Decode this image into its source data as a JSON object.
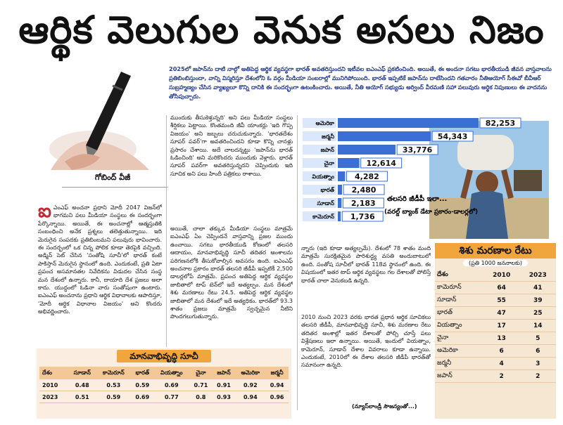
{
  "headline": "ఆర్థిక వెలుగుల వెనుక అసలు నిజం",
  "byline": "గోబింద్ వీజీ",
  "intro": "2025లో జపాన్‌ను దాటి నాల్గో అతిపెద్ద ఆర్థిక వ్యవస్థగా భారత్ అవతరిస్తుందని ఇటీవల ఐఎంఎఫ్ ప్రకటించింది. అయితే, ఈ అందనా సగటు భారతీయుడి జీవన వాస్తవాలను ప్రతిబింబిస్తుందా, వాన్ని విస్మరిస్తూ దేశంలోని ఓ వర్గం మీడియా సంబరాల్లో మునిగిపోయింది. భారత్ ఇప్పటికే జపాన్‌ను దాటేసిందని గతవారం నీతిఆయోగ్ సీఈవో బీవీఆర్ సుబ్రహ్మణ్యం చేసిన వ్యాఖ్యలూ కొన్ని దానికి ఈ సందర్భంగా ఉటంకించారు. అయితే, నీతి ఆయోగ్ సభ్యుడు అర్వింద్ వీరమణి సహా పలువురు ఆర్థిక నిపుణులు ఈ వాదనను తోసిపుచ్చారు.",
  "col1": {
    "dropcap": "ఐ",
    "text": "ఎంఎఫ్ అంచనా ప్రధాని మోదీ 2047 విజన్‌లో భాగమని పలు మీడియా సంస్థలు ఈ సందర్భంగా పేర్కొన్నాయి. అయితే, ఈ అంచనాల్లో ఆత్మస్తుతికి సంబంధించి అనేక ప్రశ్నలు తలెత్తుతున్నాయి. ఇది మెరుగైన సంపదకు ప్రతిబింబమని పలువురు భావించారు. ఈ సందర్భంలో ఒక చిన్న పోలిక కూడా తెరపైకి వచ్చింది. అడ్మిన్ సెట్ చేసిన 'సంతోషి సూచీ'లో భారత్ కంటే పాకిస్తాన్ మెరుగైన స్థానంలో ఉంది. ఎందుకంటే, ప్రతి ఏటా ప్రపంచ అసమానతల నివేదికను విడుదల చేసిన సంస్థ మన దేశంలో ఉన్నారు. కానీ, దాయాది దేశ ప్రజలు అలా కాదు. యుద్ధంలో ఓడినా వారు సంతోషంగా ఉంటారు. ఐఎంఎఫ్ అంచనాను ప్రధాని ఆర్థిక విధానాలకు ఆపాదిస్తూ, 'మోదీ ఆర్థిక విధానాల విజయం' అని కొందరు అభివర్ణించారు."
  },
  "col2": {
    "text": "ముందుకు తీసుకెళ్తున్నది' అని పలు మీడియా సంస్థలు శీర్షికలు పెట్టాయి. కొంతమంది జీవీ యాంకర్లు 'ఇది గొప్ప విజయం' అని జబ్బలు చరుచుకున్నారు. 'భారతదేశం సూపర్ పవర్‌'గా అవతరించిందని కూడా కొన్ని చానళ్లు ప్రసారం చేశాయి. అదే చాలదన్నట్టు 'జపాన్‌ను భారత్ ఓడించింది' అని మరికొందరు ముందుకు వెళ్లారు. భారత్ సూపర్ పవర్‌గా అవతరిస్తున్నదని చెప్పిందుకు ఇది సూచిక అని పలు హిందీ పత్రికలు రాశాయి.",
    "text2": "అయితే, చాలా తక్కువ మీడియా సంస్థలు మాత్రమే ఐఎంఎఫ్ ఏం చెప్పిందనే వాస్తవాన్ని ప్రజల ముందు ఉంచాయి. సగటు భారతీయుడి కోణంలో తలసరి ఆదాయం, మానవాభివృద్ధి సూచీ తదితర అంశాలను పరిగణనలోకి తీసుకోవాల్సిన అవసరం ఉంది. ఐఎంఎఫ్ అంచనాల ప్రకారం భారత్ తలసరి జీడీపీ ఇప్పటికీ 2,500 డాలర్లలోపే మాత్రమే. ప్రపంచ అతిపెద్ద ఆర్థిక వ్యవస్థల జాబితాలో టాప్ టెన్‌లో ఇదే అత్యల్పం. మన దేశంలో శిశు మరణాలు రేటు 24.5. అతిపెద్ద ఆర్థిక వ్యవస్థల జాబితాలో మన దేశంలో ఇదే అత్యధికం. భారత్‌లో 93.3 శాతం ప్రజలు మాత్రమే స్వచ్ఛమైన నీటిని పొందగలుగుతున్నారు."
  },
  "col3": {
    "text": "న్నారు (ఇది కూడా అత్యల్పమే). దేశంలో 78 శాతం మంది మాత్రమే సురక్షితమైన పారిశుద్ధ్య వసతి అందుబాటులో ఉంది. సంతోష సూచీలో భారత్ 118వ స్థానంలో ఉంది. ఈ విషయంలో ఇతర టాప్ ఆర్థిక వ్యవస్థలు గల దేశాలతో పోలిస్తే భారత్ చాలా వెనుకబడి ఉన్నది.",
    "text2": "2010 నుంచి 2023 వరకు భారత ప్రధాన ఆర్థిక సూచికలు తలసరి జీడీపీ, మానవాభివృద్ధి సూచీ, శిశు మరణాల రేటు తదితర అంశాల్లో ఇతర దేశాలతో పోల్చి చూస్తే పలు విశ్లేషణలు ఇలా ఉన్నాయి. అయితే, ఇందులో వియత్నాం, కామెరూన్, సూడాన్ దేశాల వివరాలు కూడా ఉన్నాయి. ఎందుకంటే, 2010లో ఈ దేశాల తలసరి జీడీపీ భారత్‌తో సమానంగా ఉన్నది."
  },
  "credit": "(న్యూస్‌లాండ్రీ సౌజన్యంతో...)",
  "chart_data": {
    "type": "bar",
    "orientation": "horizontal",
    "title": "తలసరి జీడీపీ ఇలా...",
    "subtitle": "(వరల్డ్ బ్యాంక్ డేటా ప్రకారం-డాలర్లలో)",
    "categories": [
      "అమెరికా",
      "జర్మనీ",
      "జపాన్",
      "చైనా",
      "వియత్నాం",
      "భారత్",
      "సూడాన్",
      "కామెరూన్"
    ],
    "values": [
      82253,
      54343,
      33776,
      12614,
      4282,
      2480,
      2183,
      1736
    ],
    "value_labels": [
      "82,253",
      "54,343",
      "33,776",
      "12,614",
      "4,282",
      "2,480",
      "2,183",
      "1,736"
    ],
    "xlim": [
      0,
      82253
    ],
    "colors": {
      "bar": "#3b6fd4",
      "bar_top": "#1f4fb8",
      "label_bg": "#dbe7fb"
    }
  },
  "imr": {
    "title": "శిశు మరణాల రేటు",
    "subtitle": "(ప్రతి 1000 జననాలకు)",
    "headers": [
      "దేశం",
      "2010",
      "2023"
    ],
    "rows": [
      [
        "కామెరూన్",
        "64",
        "41"
      ],
      [
        "సూడాన్",
        "55",
        "39"
      ],
      [
        "భారత్",
        "47",
        "25"
      ],
      [
        "వియత్నాం",
        "17",
        "14"
      ],
      [
        "చైనా",
        "13",
        "5"
      ],
      [
        "అమెరికా",
        "6",
        "6"
      ],
      [
        "జర్మనీ",
        "4",
        "3"
      ],
      [
        "జపాన్",
        "2",
        "2"
      ]
    ]
  },
  "hdi": {
    "title": "మానవాభివృద్ధి సూచీ",
    "headers": [
      "దేశం",
      "సూడాన్",
      "కామెరూన్",
      "భారత్",
      "వియత్నాం",
      "చైనా",
      "జపాన్",
      "అమెరికా",
      "జర్మనీ"
    ],
    "rows": [
      [
        "2010",
        "0.48",
        "0.53",
        "0.59",
        "0.69",
        "0.71",
        "0.91",
        "0.92",
        "0.94"
      ],
      [
        "2023",
        "0.51",
        "0.59",
        "0.69",
        "0.77",
        "0.8",
        "0.93",
        "0.94",
        "0.96"
      ]
    ]
  },
  "colors": {
    "accent": "#f0a63c",
    "intro_blue": "#2a3f8f",
    "dropcap": "#c3262f"
  }
}
